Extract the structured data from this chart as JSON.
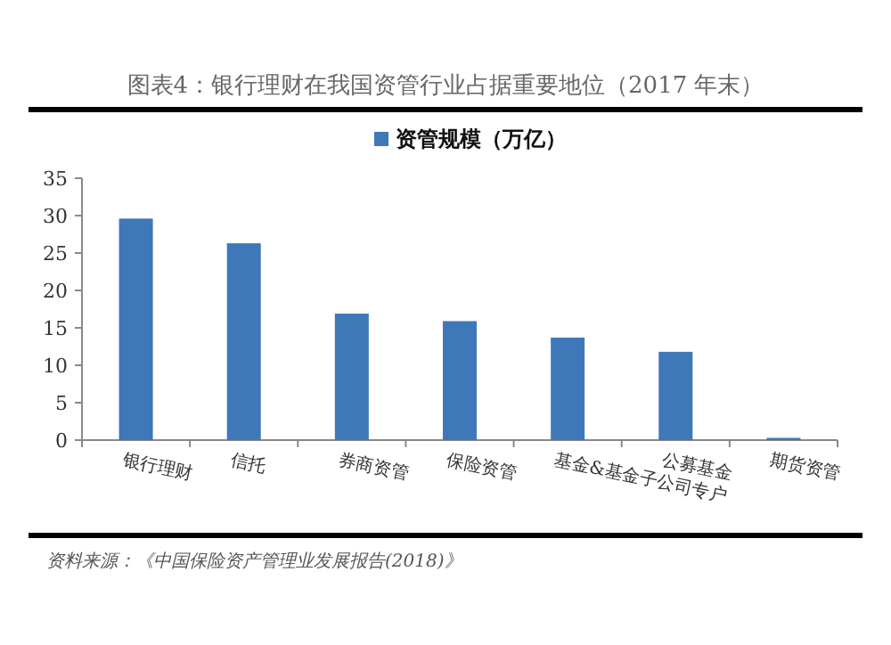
{
  "chart_data": {
    "type": "bar",
    "title": "图表4：银行理财在我国资管行业占据重要地位（2017 年末）",
    "categories": [
      "银行理财",
      "信托",
      "券商资管",
      "保险资管",
      "基金&基金子公司专户",
      "公募基金",
      "期货资管"
    ],
    "series": [
      {
        "name": "资管规模（万亿）",
        "color": "#3f78b8",
        "values": [
          29.6,
          26.3,
          16.9,
          15.9,
          13.7,
          11.8,
          0.3
        ]
      }
    ],
    "ylim": [
      0,
      35
    ],
    "yticks": [
      0,
      5,
      10,
      15,
      20,
      25,
      30,
      35
    ],
    "grid": false,
    "legend": "top",
    "annotations": [
      "资料来源：《中国保险资产管理业发展报告(2018)》"
    ]
  }
}
